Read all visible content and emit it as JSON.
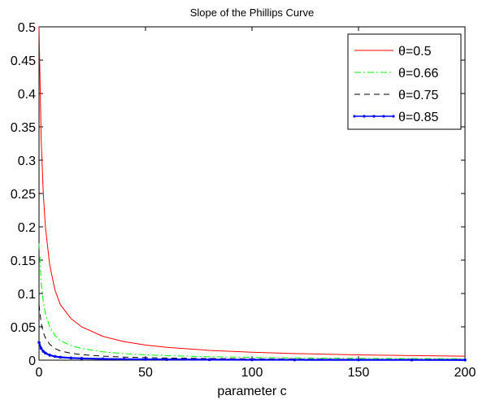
{
  "chart_data": {
    "type": "line",
    "title": "Slope of the Phillips Curve",
    "xlabel": "parameter c",
    "ylabel": "",
    "xlim": [
      0,
      200
    ],
    "ylim": [
      0,
      0.5
    ],
    "x_ticks": [
      "0",
      "50",
      "100",
      "150",
      "200"
    ],
    "y_ticks": [
      "0",
      "0.05",
      "0.1",
      "0.15",
      "0.2",
      "0.25",
      "0.3",
      "0.35",
      "0.4",
      "0.45",
      "0.5"
    ],
    "grid": false,
    "legend_position": "top-right",
    "x": [
      0,
      1,
      2,
      3,
      5,
      7.5,
      10,
      15,
      20,
      30,
      40,
      50,
      60,
      80,
      100,
      120,
      150,
      175,
      200
    ],
    "series": [
      {
        "name": "θ=0.5",
        "color": "#ff0000",
        "style": "solid",
        "values": [
          0.5,
          0.333,
          0.25,
          0.2,
          0.143,
          0.105,
          0.0833,
          0.0625,
          0.05,
          0.0357,
          0.0278,
          0.0227,
          0.0192,
          0.0147,
          0.0119,
          0.0099,
          0.00794,
          0.00683,
          0.00599
        ]
      },
      {
        "name": "θ=0.66",
        "color": "#00ff00",
        "style": "dashdot",
        "values": [
          0.175,
          0.117,
          0.0876,
          0.07,
          0.05,
          0.0368,
          0.0292,
          0.0219,
          0.0175,
          0.0125,
          0.00974,
          0.00797,
          0.00674,
          0.00515,
          0.00417,
          0.00347,
          0.00278,
          0.00239,
          0.0021
        ]
      },
      {
        "name": "θ=0.75",
        "color": "#000000",
        "style": "dashed",
        "values": [
          0.0833,
          0.0556,
          0.0417,
          0.0333,
          0.0238,
          0.0175,
          0.0139,
          0.0104,
          0.00833,
          0.00595,
          0.00463,
          0.00379,
          0.00321,
          0.00245,
          0.00198,
          0.00165,
          0.00132,
          0.00114,
          0.000999
        ]
      },
      {
        "name": "θ=0.85",
        "color": "#0000ff",
        "style": "dotted-marker",
        "values": [
          0.0265,
          0.0177,
          0.0132,
          0.0106,
          0.00757,
          0.00557,
          0.00442,
          0.00331,
          0.00265,
          0.00189,
          0.00147,
          0.0012,
          0.00102,
          0.000779,
          0.00063,
          0.000527,
          0.000421,
          0.000362,
          0.000318
        ]
      }
    ]
  }
}
